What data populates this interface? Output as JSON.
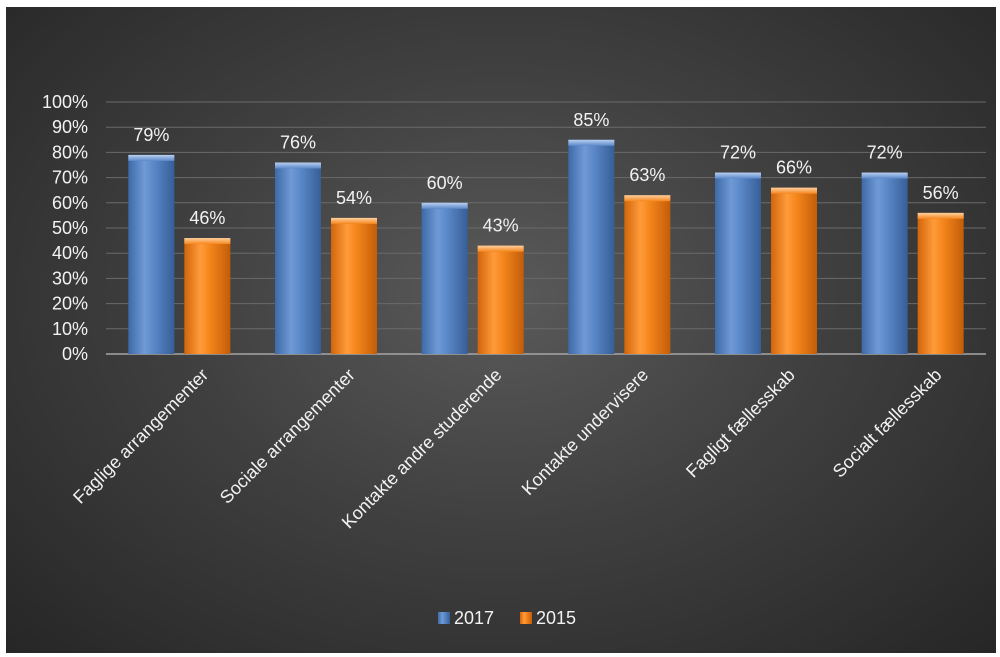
{
  "chart_data": {
    "type": "bar",
    "categories": [
      "Faglige arrangementer",
      "Sociale arrangementer",
      "Kontakte andre studerende",
      "Kontakte undervisere",
      "Fagligt fællesskab",
      "Socialt fællesskab"
    ],
    "series": [
      {
        "name": "2017",
        "values": [
          79,
          76,
          60,
          85,
          72,
          72
        ],
        "color": "#4f81bd",
        "labels": [
          "79%",
          "76%",
          "60%",
          "85%",
          "72%",
          "72%"
        ]
      },
      {
        "name": "2015",
        "values": [
          46,
          54,
          43,
          63,
          66,
          56
        ],
        "color": "#f07d0f",
        "labels": [
          "46%",
          "54%",
          "43%",
          "63%",
          "66%",
          "56%"
        ]
      }
    ],
    "ylim": [
      0,
      100
    ],
    "yticks": [
      "0%",
      "10%",
      "20%",
      "30%",
      "40%",
      "50%",
      "60%",
      "70%",
      "80%",
      "90%",
      "100%"
    ],
    "grid": true,
    "legend_position": "bottom",
    "background": "#404040"
  }
}
